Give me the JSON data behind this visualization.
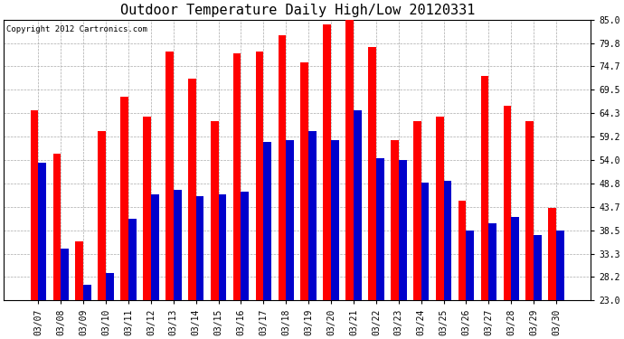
{
  "title": "Outdoor Temperature Daily High/Low 20120331",
  "copyright": "Copyright 2012 Cartronics.com",
  "dates": [
    "03/07",
    "03/08",
    "03/09",
    "03/10",
    "03/11",
    "03/12",
    "03/13",
    "03/14",
    "03/15",
    "03/16",
    "03/17",
    "03/18",
    "03/19",
    "03/20",
    "03/21",
    "03/22",
    "03/23",
    "03/24",
    "03/25",
    "03/26",
    "03/27",
    "03/28",
    "03/29",
    "03/30"
  ],
  "highs": [
    65.0,
    55.5,
    36.0,
    60.5,
    68.0,
    63.5,
    78.0,
    72.0,
    62.5,
    77.5,
    78.0,
    81.5,
    75.5,
    84.0,
    85.0,
    79.0,
    58.5,
    62.5,
    63.5,
    45.0,
    72.5,
    66.0,
    62.5,
    43.5
  ],
  "lows": [
    53.5,
    34.5,
    26.5,
    29.0,
    41.0,
    46.5,
    47.5,
    46.0,
    46.5,
    47.0,
    58.0,
    58.5,
    60.5,
    58.5,
    65.0,
    54.5,
    54.0,
    49.0,
    49.5,
    38.5,
    40.0,
    41.5,
    37.5,
    38.5
  ],
  "bar_color_high": "#ff0000",
  "bar_color_low": "#0000cc",
  "background_color": "#ffffff",
  "plot_bg_color": "#ffffff",
  "grid_color": "#aaaaaa",
  "ylim_min": 23.0,
  "ylim_max": 85.0,
  "yticks": [
    23.0,
    28.2,
    33.3,
    38.5,
    43.7,
    48.8,
    54.0,
    59.2,
    64.3,
    69.5,
    74.7,
    79.8,
    85.0
  ],
  "title_fontsize": 11,
  "tick_fontsize": 7,
  "copyright_fontsize": 6.5,
  "bar_width": 0.35
}
